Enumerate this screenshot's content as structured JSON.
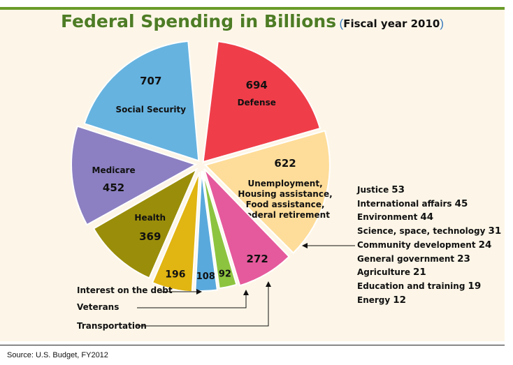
{
  "chart_data": {
    "type": "pie",
    "title": "Federal Spending in Billions",
    "subtitle_open": "(",
    "subtitle": "Fiscal year 2010",
    "subtitle_close": ")",
    "slices": [
      {
        "value": "694",
        "label_lines": [
          "Defense"
        ],
        "value_num": 694,
        "color": "#ef3e4a",
        "start_deg": 7,
        "end_deg": 74
      },
      {
        "value": "622",
        "label_lines": [
          "Unemployment,",
          "Housing assistance,",
          "Food assistance,",
          "Federal retirement"
        ],
        "value_num": 622,
        "color": "#fedd9a",
        "start_deg": 74,
        "end_deg": 135
      },
      {
        "value": "272",
        "label_lines": [],
        "value_num": 272,
        "color": "#e55a9c",
        "start_deg": 136,
        "end_deg": 163
      },
      {
        "value": "92",
        "label_lines": [],
        "value_num": 92,
        "color": "#8dc43f",
        "start_deg": 163.5,
        "end_deg": 172
      },
      {
        "value": "108",
        "label_lines": [],
        "value_num": 108,
        "color": "#5aa9dc",
        "start_deg": 172.5,
        "end_deg": 183
      },
      {
        "value": "196",
        "label_lines": [],
        "value_num": 196,
        "color": "#e1b512",
        "start_deg": 183.5,
        "end_deg": 203
      },
      {
        "value": "369",
        "label_lines": [
          "Health"
        ],
        "value_num": 369,
        "color": "#9a8d0a",
        "start_deg": 203.5,
        "end_deg": 240
      },
      {
        "value": "452",
        "label_lines": [
          "Medicare"
        ],
        "value_num": 452,
        "color": "#8c80c2",
        "start_deg": 241,
        "end_deg": 288
      },
      {
        "value": "707",
        "label_lines": [
          "Social Security"
        ],
        "value_num": 707,
        "color": "#66b3e0",
        "start_deg": 288,
        "end_deg": 355
      }
    ],
    "small_items": [
      {
        "label": "Justice",
        "value": "53"
      },
      {
        "label": "International affairs",
        "value": "45"
      },
      {
        "label": "Environment",
        "value": "44"
      },
      {
        "label": "Science, space, technology",
        "value": "31"
      },
      {
        "label": "Community development",
        "value": "24"
      },
      {
        "label": "General government",
        "value": "23"
      },
      {
        "label": "Agriculture",
        "value": "21"
      },
      {
        "label": "Education and training",
        "value": "19"
      },
      {
        "label": "Energy",
        "value": "12"
      }
    ],
    "callouts": {
      "interest": "Interest on the debt",
      "veterans": "Veterans",
      "transportation": "Transportation"
    }
  },
  "source": "Source: U.S. Budget, FY2012"
}
